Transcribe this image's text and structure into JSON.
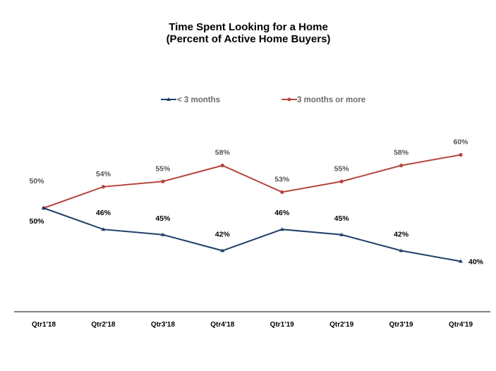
{
  "chart_data": {
    "type": "line",
    "title": "Time Spent Looking for a Home",
    "subtitle": "(Percent of Active Home Buyers)",
    "categories": [
      "Qtr1'18",
      "Qtr2'18",
      "Qtr3'18",
      "Qtr4'18",
      "Qtr1'19",
      "Qtr2'19",
      "Qtr3'19",
      "Qtr4'19"
    ],
    "series": [
      {
        "name": "< 3 months",
        "color": "#1f3f68",
        "marker": "triangle",
        "values": [
          50,
          46,
          45,
          42,
          46,
          45,
          42,
          40
        ],
        "labels": [
          "50%",
          "46%",
          "45%",
          "42%",
          "46%",
          "45%",
          "42%",
          "40%"
        ]
      },
      {
        "name": "3 months or more",
        "color": "#b5463d",
        "marker": "circle",
        "values": [
          50,
          54,
          55,
          58,
          53,
          55,
          58,
          60
        ],
        "labels": [
          "50%",
          "54%",
          "55%",
          "58%",
          "53%",
          "55%",
          "58%",
          "60%"
        ]
      }
    ],
    "legend_position": "top-center",
    "grid": false,
    "xlabel": "",
    "ylabel": ""
  }
}
